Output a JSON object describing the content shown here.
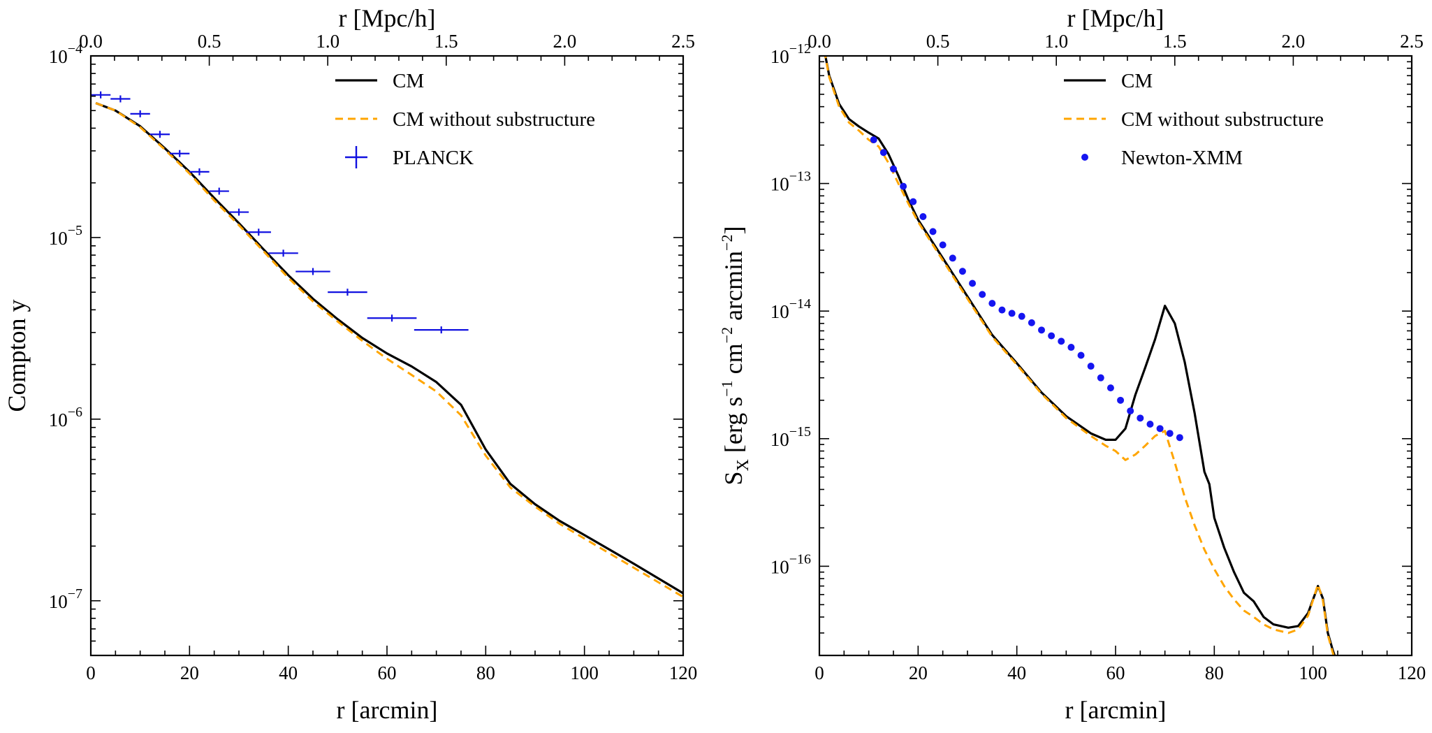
{
  "chart_data": [
    {
      "type": "line",
      "panel": "left",
      "xlabel": "r [arcmin]",
      "x2label": "r [Mpc/h]",
      "ylabel": "Compton y",
      "yscale": "log",
      "xlim": [
        0,
        120
      ],
      "ylim": [
        5e-08,
        0.0001
      ],
      "x_ticks": [
        0,
        20,
        40,
        60,
        80,
        100,
        120
      ],
      "x_tick_labels": [
        "0",
        "20",
        "40",
        "60",
        "80",
        "100",
        "120"
      ],
      "x2_ticks": [
        0.0,
        0.5,
        1.0,
        1.5,
        2.0,
        2.5
      ],
      "x2_tick_labels": [
        "0.0",
        "0.5",
        "1.0",
        "1.5",
        "2.0",
        "2.5"
      ],
      "y_tick_exponents": [
        -4,
        -5,
        -6,
        -7
      ],
      "y_tick_base": "10",
      "legend": {
        "placement": "upper-right",
        "entries": [
          {
            "label": "CM",
            "style": "solid",
            "color": "#000000"
          },
          {
            "label": "CM without substructure",
            "style": "dashed",
            "color": "#FFA500"
          },
          {
            "label": "PLANCK",
            "style": "errorbar",
            "color": "#1010E0"
          }
        ]
      },
      "series": [
        {
          "name": "CM",
          "color": "#000000",
          "style": "solid",
          "x": [
            1,
            5,
            10,
            15,
            20,
            25,
            30,
            35,
            40,
            45,
            50,
            55,
            60,
            65,
            70,
            75,
            80,
            85,
            90,
            95,
            100,
            110,
            120
          ],
          "y": [
            5.5e-05,
            5e-05,
            4.1e-05,
            3.1e-05,
            2.3e-05,
            1.65e-05,
            1.2e-05,
            8.6e-06,
            6.2e-06,
            4.6e-06,
            3.55e-06,
            2.8e-06,
            2.3e-06,
            1.95e-06,
            1.6e-06,
            1.2e-06,
            6.8e-07,
            4.4e-07,
            3.4e-07,
            2.75e-07,
            2.3e-07,
            1.6e-07,
            1.1e-07
          ]
        },
        {
          "name": "CM without substructure",
          "color": "#FFA500",
          "style": "dashed",
          "x": [
            1,
            5,
            10,
            15,
            20,
            25,
            30,
            35,
            40,
            45,
            50,
            55,
            60,
            65,
            70,
            75,
            80,
            85,
            90,
            95,
            100,
            110,
            120
          ],
          "y": [
            5.5e-05,
            5e-05,
            4.05e-05,
            3.05e-05,
            2.25e-05,
            1.6e-05,
            1.17e-05,
            8.4e-06,
            6e-06,
            4.45e-06,
            3.45e-06,
            2.7e-06,
            2.15e-06,
            1.75e-06,
            1.42e-06,
            1.05e-06,
            6.3e-07,
            4.2e-07,
            3.3e-07,
            2.65e-07,
            2.2e-07,
            1.52e-07,
            1.05e-07
          ]
        },
        {
          "name": "PLANCK",
          "color": "#1010E0",
          "style": "errorbar",
          "x": [
            2,
            6,
            10,
            14,
            18,
            22,
            26,
            30,
            34,
            39,
            45,
            52,
            61,
            71
          ],
          "xerr": [
            2,
            2,
            2,
            2,
            2,
            2,
            2,
            2,
            2.5,
            3,
            3.5,
            4,
            5,
            5.5
          ],
          "y": [
            6.1e-05,
            5.8e-05,
            4.8e-05,
            3.7e-05,
            2.9e-05,
            2.3e-05,
            1.8e-05,
            1.38e-05,
            1.07e-05,
            8.2e-06,
            6.5e-06,
            5e-06,
            3.6e-06,
            3.1e-06
          ]
        }
      ]
    },
    {
      "type": "line",
      "panel": "right",
      "xlabel": "r [arcmin]",
      "x2label": "r [Mpc/h]",
      "ylabel": "S_X [erg s^-1 cm^-2 arcmin^-2]",
      "ylabel_parts": {
        "main": "S",
        "sub": "X",
        "unit_1": " [erg s",
        "sup_1": "−1",
        "unit_2": " cm",
        "sup_2": "−2",
        "unit_3": " arcmin",
        "sup_3": "−2",
        "unit_4": "]"
      },
      "yscale": "log",
      "xlim": [
        0,
        120
      ],
      "ylim": [
        2e-17,
        1e-12
      ],
      "x_ticks": [
        0,
        20,
        40,
        60,
        80,
        100,
        120
      ],
      "x_tick_labels": [
        "0",
        "20",
        "40",
        "60",
        "80",
        "100",
        "120"
      ],
      "x2_ticks": [
        0.0,
        0.5,
        1.0,
        1.5,
        2.0,
        2.5
      ],
      "x2_tick_labels": [
        "0.0",
        "0.5",
        "1.0",
        "1.5",
        "2.0",
        "2.5"
      ],
      "y_tick_exponents": [
        -12,
        -13,
        -14,
        -15,
        -16
      ],
      "y_tick_base": "10",
      "legend": {
        "placement": "upper-right",
        "entries": [
          {
            "label": "CM",
            "style": "solid",
            "color": "#000000"
          },
          {
            "label": "CM without substructure",
            "style": "dashed",
            "color": "#FFA500"
          },
          {
            "label": "Newton-XMM",
            "style": "dots",
            "color": "#1515F0"
          }
        ]
      },
      "series": [
        {
          "name": "CM",
          "color": "#000000",
          "style": "solid",
          "x": [
            1,
            2,
            4,
            6,
            8,
            10,
            12,
            14,
            16,
            18,
            20,
            25,
            30,
            35,
            40,
            45,
            50,
            55,
            58,
            60,
            62,
            64,
            66,
            68,
            70,
            72,
            74,
            76,
            78,
            79,
            80,
            82,
            84,
            86,
            88,
            90,
            92,
            95,
            97,
            99,
            101,
            102,
            103,
            104,
            105
          ],
          "y": [
            1.1e-12,
            7e-13,
            4.2e-13,
            3.2e-13,
            2.8e-13,
            2.5e-13,
            2.25e-13,
            1.7e-13,
            1.15e-13,
            7.5e-14,
            5.2e-14,
            2.6e-14,
            1.3e-14,
            6.5e-15,
            3.9e-15,
            2.3e-15,
            1.5e-15,
            1.1e-15,
            9.8e-16,
            9.8e-16,
            1.2e-15,
            2.2e-15,
            3.6e-15,
            6e-15,
            1.1e-14,
            8e-15,
            4e-15,
            1.6e-15,
            5.5e-16,
            4.4e-16,
            2.4e-16,
            1.4e-16,
            9e-17,
            6.2e-17,
            5.3e-17,
            4e-17,
            3.5e-17,
            3.3e-17,
            3.4e-17,
            4.3e-17,
            7e-17,
            5.6e-17,
            3e-17,
            2.2e-17,
            1.7e-17
          ]
        },
        {
          "name": "CM without substructure",
          "color": "#FFA500",
          "style": "dashed",
          "x": [
            1,
            2,
            4,
            6,
            8,
            10,
            12,
            14,
            16,
            18,
            20,
            25,
            30,
            35,
            40,
            45,
            50,
            55,
            58,
            60,
            62,
            64,
            66,
            68,
            70,
            72,
            74,
            76,
            78,
            80,
            82,
            84,
            86,
            88,
            90,
            92,
            95,
            97,
            99,
            101,
            102,
            103,
            104,
            105
          ],
          "y": [
            1.1e-12,
            6.8e-13,
            4e-13,
            3e-13,
            2.6e-13,
            2.2e-13,
            1.95e-13,
            1.45e-13,
            1e-13,
            7e-14,
            5e-14,
            2.5e-14,
            1.25e-14,
            6.3e-15,
            3.8e-15,
            2.25e-15,
            1.45e-15,
            1.05e-15,
            8.8e-16,
            8e-16,
            6.8e-16,
            7.5e-16,
            8.8e-16,
            1.05e-15,
            1.15e-15,
            6.5e-16,
            3.5e-16,
            2.1e-16,
            1.35e-16,
            9.5e-17,
            7e-17,
            5.5e-17,
            4.5e-17,
            4e-17,
            3.5e-17,
            3.2e-17,
            3e-17,
            3.2e-17,
            4.1e-17,
            7.2e-17,
            5.4e-17,
            2.9e-17,
            2.1e-17,
            1.6e-17
          ]
        },
        {
          "name": "Newton-XMM",
          "color": "#1515F0",
          "style": "dots",
          "x": [
            11,
            13,
            15,
            17,
            19,
            21,
            23,
            25,
            27,
            29,
            31,
            33,
            35,
            37,
            39,
            41,
            43,
            45,
            47,
            49,
            51,
            53,
            55,
            57,
            59,
            61,
            63,
            65,
            67,
            69,
            71,
            73
          ],
          "y": [
            2.2e-13,
            1.75e-13,
            1.3e-13,
            9.5e-14,
            7.2e-14,
            5.5e-14,
            4.2e-14,
            3.3e-14,
            2.6e-14,
            2.05e-14,
            1.65e-14,
            1.35e-14,
            1.15e-14,
            1.02e-14,
            9.6e-15,
            9.1e-15,
            8.1e-15,
            7.1e-15,
            6.4e-15,
            5.8e-15,
            5.2e-15,
            4.5e-15,
            3.7e-15,
            3e-15,
            2.5e-15,
            2e-15,
            1.65e-15,
            1.45e-15,
            1.3e-15,
            1.2e-15,
            1.1e-15,
            1.02e-15
          ]
        }
      ]
    }
  ]
}
